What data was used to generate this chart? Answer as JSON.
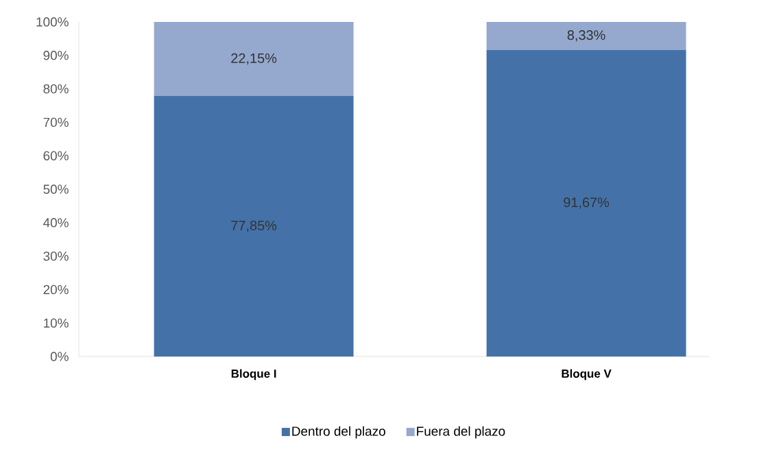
{
  "chart_data": {
    "type": "bar",
    "stacked": true,
    "categories": [
      "Bloque I",
      "Bloque V"
    ],
    "series": [
      {
        "name": "Dentro del plazo",
        "color": "#4472a8",
        "values": [
          77.85,
          91.67
        ],
        "value_labels": [
          "77,85%",
          "91,67%"
        ]
      },
      {
        "name": "Fuera del plazo",
        "color": "#95a9cf",
        "values": [
          22.15,
          8.33
        ],
        "value_labels": [
          "22,15%",
          "8,33%"
        ]
      }
    ],
    "ylim": [
      0,
      100
    ],
    "yticks": [
      {
        "value": 0,
        "label": "0%"
      },
      {
        "value": 10,
        "label": "10%"
      },
      {
        "value": 20,
        "label": "20%"
      },
      {
        "value": 30,
        "label": "30%"
      },
      {
        "value": 40,
        "label": "40%"
      },
      {
        "value": 50,
        "label": "50%"
      },
      {
        "value": 60,
        "label": "60%"
      },
      {
        "value": 70,
        "label": "70%"
      },
      {
        "value": 80,
        "label": "80%"
      },
      {
        "value": 90,
        "label": "90%"
      },
      {
        "value": 100,
        "label": "100%"
      }
    ],
    "grid": false,
    "legend": "bottom"
  }
}
